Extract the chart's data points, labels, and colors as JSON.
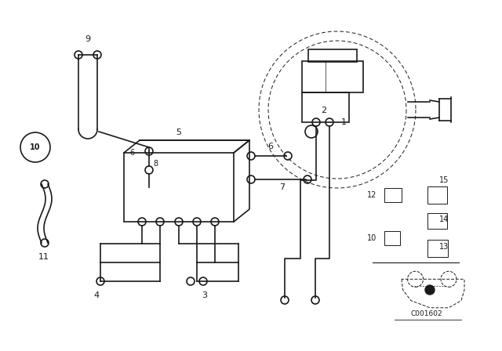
{
  "bg_color": "#ffffff",
  "lc": "#1a1a1a",
  "lw": 1.2,
  "tlw": 0.7,
  "fig_w": 6.4,
  "fig_h": 4.48,
  "xlim": [
    0,
    640
  ],
  "ylim": [
    0,
    448
  ]
}
